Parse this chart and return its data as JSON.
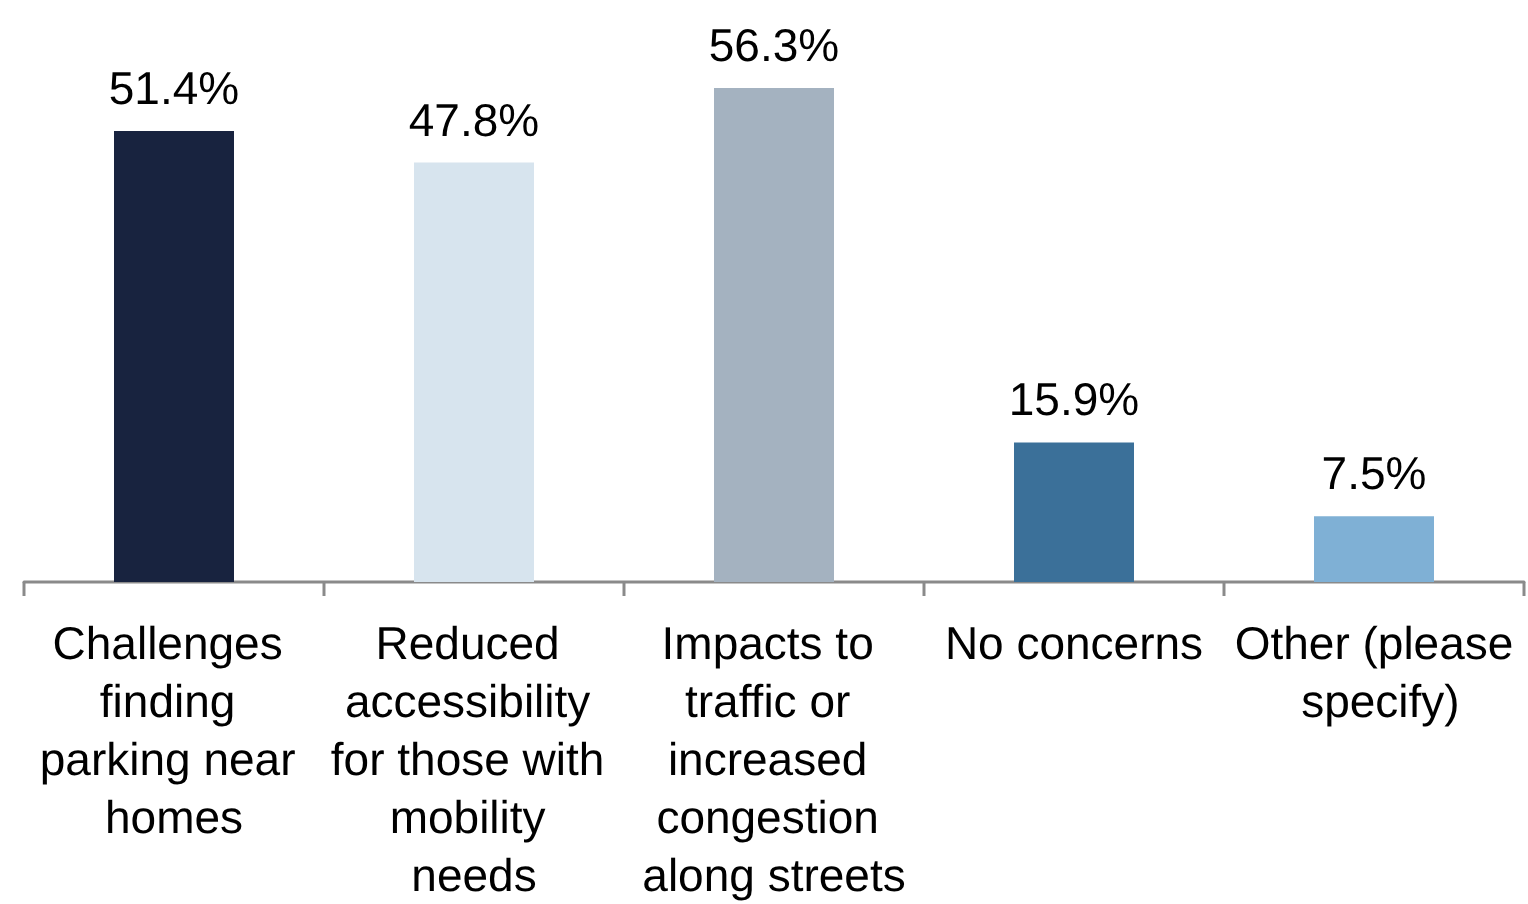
{
  "chart_data": {
    "type": "bar",
    "categories": [
      "Challenges finding parking near homes",
      "Reduced accessibility for those with mobility needs",
      "Impacts to traffic or increased congestion along streets",
      "No concerns",
      "Other (please specify)"
    ],
    "values": [
      51.4,
      47.8,
      56.3,
      15.9,
      7.5
    ],
    "colors": [
      "#18233f",
      "#d7e4ee",
      "#a4b2c0",
      "#3b7099",
      "#7fb0d5"
    ],
    "value_labels": [
      "51.4%",
      "47.8%",
      "56.3%",
      "15.9%",
      "7.5%"
    ],
    "tick_labels": "x"
  }
}
